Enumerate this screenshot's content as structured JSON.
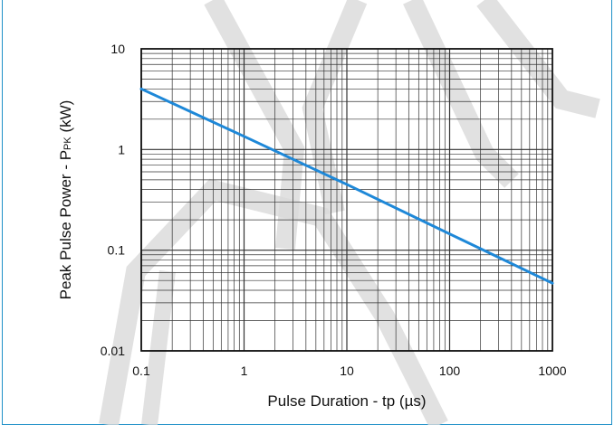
{
  "page": {
    "title_fragment": ""
  },
  "chart_data": {
    "type": "line",
    "title": "",
    "xlabel": "Pulse Duration - tp (µs)",
    "ylabel_main": "Peak Pulse Power - P",
    "ylabel_subscript": "PK",
    "ylabel_unit": " (kW)",
    "xscale": "log",
    "yscale": "log",
    "xlim": [
      0.1,
      1000
    ],
    "ylim": [
      0.01,
      10
    ],
    "x_ticks": [
      "0.1",
      "1",
      "10",
      "100",
      "1000"
    ],
    "y_ticks": [
      "0.01",
      "0.1",
      "1",
      "10"
    ],
    "grid": true,
    "series": [
      {
        "x": [
          0.1,
          1,
          10,
          100,
          1000
        ],
        "y": [
          4.0,
          1.35,
          0.45,
          0.145,
          0.047
        ]
      }
    ],
    "colors": {
      "line": "#1e88d8",
      "grid": "#333333",
      "frame": "#1f90c8",
      "text": "#111111",
      "watermark": "#d9d9d9"
    }
  }
}
